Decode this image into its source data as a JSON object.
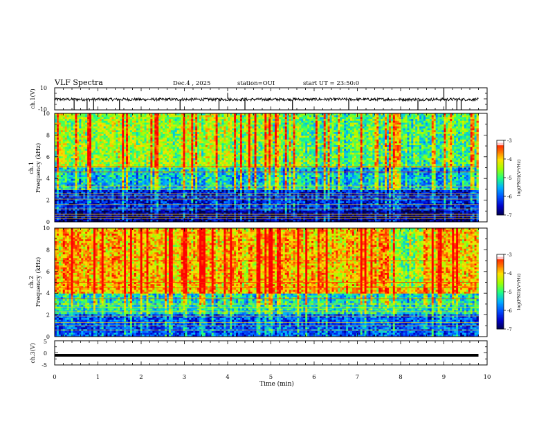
{
  "header": {
    "title": "VLF Spectra",
    "date": "Dec.4 , 2025",
    "station": "station=OUI",
    "start": "start UT = 23:50:0"
  },
  "chart_data": [
    {
      "type": "line",
      "panel": "waveform-ch1",
      "ylabel": "ch.1(V)",
      "ylim": [
        -10,
        10
      ],
      "yticks": [
        "10",
        "-10"
      ],
      "x_range": [
        0,
        9.8
      ],
      "baseline": 0,
      "series": [
        {
          "name": "ch.1",
          "spikes_at_min": [
            0.45,
            0.75,
            0.9,
            1.5,
            2.9,
            3.8,
            4.4,
            5.5,
            6.8,
            8.4,
            9.05,
            9.3,
            9.4
          ]
        }
      ]
    },
    {
      "type": "heatmap",
      "panel": "spectrogram-ch1",
      "ylabel": "ch.1 Frequency (kHz)",
      "ylim": [
        0,
        10
      ],
      "yticks": [
        "0",
        "2",
        "4",
        "6",
        "8",
        "10"
      ],
      "x_range_min": [
        0,
        9.8
      ],
      "colorbar": {
        "label": "log(PSD)(V²/Hz)",
        "ticks": [
          "-3",
          "-4",
          "-5",
          "-6",
          "-7"
        ],
        "range": [
          -7,
          -3
        ]
      },
      "dominant_levels": [
        {
          "freq_khz": [
            0,
            1.0
          ],
          "log_psd": -6.8
        },
        {
          "freq_khz": [
            1.0,
            3.0
          ],
          "log_psd": -6.3
        },
        {
          "freq_khz": [
            3.0,
            5.0
          ],
          "log_psd": -5.4
        },
        {
          "freq_khz": [
            5.0,
            10.0
          ],
          "log_psd": -4.6
        }
      ],
      "spectral_lines_khz": [
        0.3,
        0.5,
        0.7,
        1.2,
        1.6,
        2.1,
        2.4,
        2.6,
        3.0,
        3.3,
        4.6,
        5.1
      ]
    },
    {
      "type": "heatmap",
      "panel": "spectrogram-ch2",
      "ylabel": "ch.2 Frequency (kHz)",
      "ylim": [
        0,
        10
      ],
      "yticks": [
        "0",
        "2",
        "4",
        "6",
        "8",
        "10"
      ],
      "x_range_min": [
        0,
        9.8
      ],
      "colorbar": {
        "label": "log(PSD)(V²/Hz)",
        "ticks": [
          "-3",
          "-4",
          "-5",
          "-6",
          "-7"
        ],
        "range": [
          -7,
          -3
        ]
      },
      "dominant_levels": [
        {
          "freq_khz": [
            0,
            2.0
          ],
          "log_psd": -6.0
        },
        {
          "freq_khz": [
            2.0,
            4.0
          ],
          "log_psd": -5.2
        },
        {
          "freq_khz": [
            4.0,
            10.0
          ],
          "log_psd": -3.9
        }
      ],
      "spectral_lines_khz": [
        0.6,
        1.0,
        1.3,
        1.9,
        2.3,
        2.7,
        3.0,
        3.5,
        4.5,
        5.0,
        7.0
      ]
    },
    {
      "type": "line",
      "panel": "waveform-ch3",
      "ylabel": "ch.3(V)",
      "ylim": [
        -5,
        5
      ],
      "yticks": [
        "5",
        "0",
        "-5"
      ],
      "x_range": [
        0,
        9.8
      ],
      "series": [
        {
          "name": "ch.3",
          "constant_value": -1
        }
      ]
    }
  ],
  "xaxis": {
    "label": "Time (min)",
    "range": [
      0,
      10
    ],
    "ticks": [
      "0",
      "1",
      "2",
      "3",
      "4",
      "5",
      "6",
      "7",
      "8",
      "9",
      "10"
    ]
  },
  "colors": {
    "colormap": [
      "#00004a",
      "#0000c8",
      "#0050ff",
      "#00b0ff",
      "#20ff80",
      "#a0ff00",
      "#ffe000",
      "#ff6000",
      "#ff0000",
      "#ffffff"
    ]
  }
}
